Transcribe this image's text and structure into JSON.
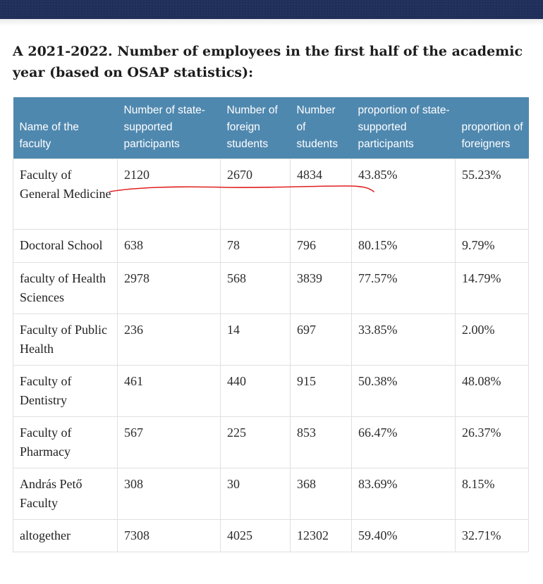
{
  "heading": "A 2021-2022. Number of employees in the first half of the academic year (based on OSAP statistics):",
  "table": {
    "headers": [
      "Name of the faculty",
      "Number of state-supported participants",
      "Number of foreign students",
      "Number of students",
      "proportion of state-supported participants",
      "proportion of foreigners"
    ],
    "rows": [
      [
        "Faculty of General Medicine",
        "2120",
        "2670",
        "4834",
        "43.85%",
        "55.23%"
      ],
      [
        "Doctoral School",
        "638",
        "78",
        "796",
        "80.15%",
        "9.79%"
      ],
      [
        "faculty of Health Sciences",
        "2978",
        "568",
        "3839",
        "77.57%",
        "14.79%"
      ],
      [
        "Faculty of Public Health",
        "236",
        "14",
        "697",
        "33.85%",
        "2.00%"
      ],
      [
        "Faculty of Dentistry",
        "461",
        "440",
        "915",
        "50.38%",
        "48.08%"
      ],
      [
        "Faculty of Pharmacy",
        "567",
        "225",
        "853",
        "66.47%",
        "26.37%"
      ],
      [
        "András Pető Faculty",
        "308",
        "30",
        "368",
        "83.69%",
        "8.15%"
      ],
      [
        "altogether",
        "7308",
        "4025",
        "12302",
        "59.40%",
        "32.71%"
      ]
    ]
  },
  "colors": {
    "header_bg": "#4f88af",
    "top_bar": "#1f2f5a",
    "annotation_stroke": "#e0201f"
  }
}
